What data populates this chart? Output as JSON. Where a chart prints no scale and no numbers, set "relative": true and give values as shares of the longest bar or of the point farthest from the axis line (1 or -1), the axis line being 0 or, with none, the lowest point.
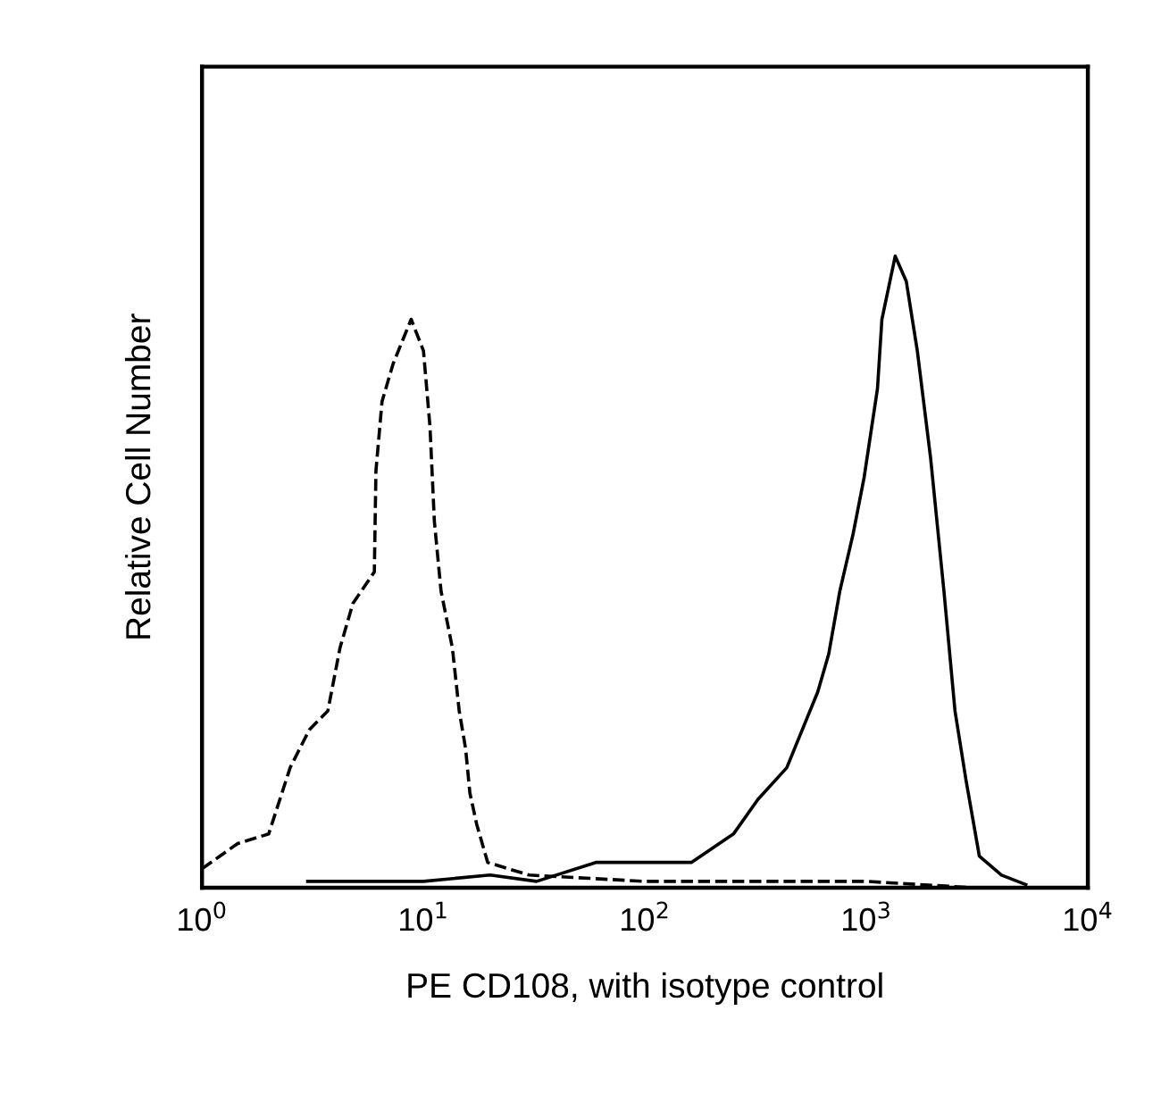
{
  "chart_data": {
    "type": "line",
    "relative": true,
    "log": "x",
    "grid": false,
    "xlabel": "PE CD108, with isotype control",
    "ylabel": "Relative Cell Number",
    "xlim": [
      1,
      10000
    ],
    "xticks": [
      {
        "value": 1,
        "label": "10$^{0}$"
      },
      {
        "value": 10,
        "label": "10$^{1}$"
      },
      {
        "value": 100,
        "label": "10$^{2}$"
      },
      {
        "value": 1000,
        "label": "10$^{3}$"
      },
      {
        "value": 10000,
        "label": "10$^{4}$"
      }
    ],
    "series": [
      {
        "color": "#000000",
        "line_style": "dashed",
        "x": [
          1.0,
          1.45,
          2.0,
          2.5,
          3.05,
          3.7,
          4.2,
          4.8,
          6.0,
          6.1,
          6.5,
          7.3,
          8.8,
          10,
          10.7,
          11.2,
          12,
          13.5,
          14.5,
          15.5,
          16.2,
          17.4,
          19.5,
          30,
          100,
          1000,
          3000
        ],
        "values": [
          0.03,
          0.07,
          0.085,
          0.19,
          0.25,
          0.28,
          0.38,
          0.45,
          0.5,
          0.66,
          0.77,
          0.83,
          0.9,
          0.85,
          0.73,
          0.58,
          0.47,
          0.38,
          0.28,
          0.22,
          0.15,
          0.1,
          0.04,
          0.02,
          0.01,
          0.01,
          0
        ]
      },
      {
        "color": "#000000",
        "line_style": "solid",
        "x": [
          3,
          10,
          20,
          32.4,
          60,
          162,
          251,
          324,
          437,
          603,
          676,
          759,
          871,
          977,
          1122,
          1175,
          1349,
          1514,
          1698,
          1950,
          2239,
          2512,
          2818,
          3236,
          4074,
          5248
        ],
        "values": [
          0.01,
          0.01,
          0.02,
          0.01,
          0.04,
          0.04,
          0.085,
          0.14,
          0.19,
          0.31,
          0.37,
          0.47,
          0.56,
          0.65,
          0.79,
          0.9,
          1.0,
          0.96,
          0.85,
          0.68,
          0.47,
          0.28,
          0.17,
          0.05,
          0.02,
          0.005
        ]
      }
    ]
  }
}
